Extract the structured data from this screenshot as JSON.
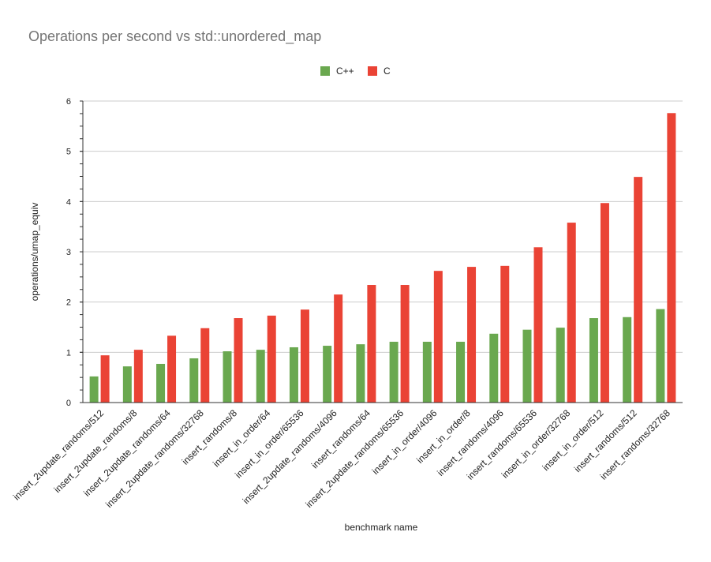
{
  "chart_data": {
    "type": "bar",
    "title": "Operations per second vs std::unordered_map",
    "xlabel": "benchmark name",
    "ylabel": "operations/umap_equiv",
    "ylim": [
      0,
      6
    ],
    "yticks": [
      0,
      1,
      2,
      3,
      4,
      5,
      6
    ],
    "grid": true,
    "legend_position": "top",
    "categories": [
      "insert_2update_randoms/512",
      "insert_2update_randoms/8",
      "insert_2update_randoms/64",
      "insert_2update_randoms/32768",
      "insert_randoms/8",
      "insert_in_order/64",
      "insert_in_order/65536",
      "insert_2update_randoms/4096",
      "insert_randoms/64",
      "insert_2update_randoms/65536",
      "insert_in_order/4096",
      "insert_in_order/8",
      "insert_randoms/4096",
      "insert_randoms/65536",
      "insert_in_order/32768",
      "insert_in_order/512",
      "insert_randoms/512",
      "insert_randoms/32768"
    ],
    "series": [
      {
        "name": "C++",
        "color": "#6aa84f",
        "values": [
          0.52,
          0.72,
          0.77,
          0.88,
          1.02,
          1.05,
          1.1,
          1.13,
          1.16,
          1.21,
          1.21,
          1.21,
          1.37,
          1.45,
          1.49,
          1.68,
          1.7,
          1.86
        ]
      },
      {
        "name": "C",
        "color": "#ea4335",
        "values": [
          0.94,
          1.05,
          1.33,
          1.48,
          1.68,
          1.73,
          1.85,
          2.15,
          2.34,
          2.34,
          2.62,
          2.7,
          2.72,
          3.09,
          3.58,
          3.97,
          4.49,
          5.76
        ]
      }
    ]
  }
}
